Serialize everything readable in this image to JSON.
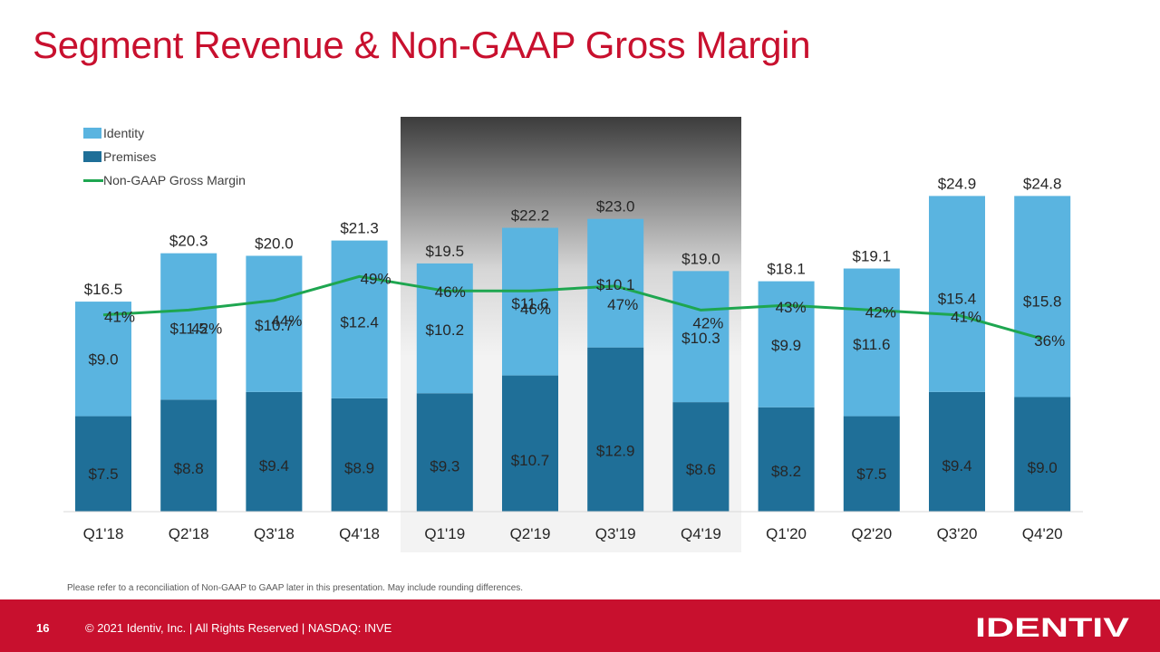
{
  "title": "Segment Revenue & Non-GAAP Gross Margin",
  "footnote": "Please refer to a reconciliation of Non-GAAP to GAAP later in this presentation. May include rounding differences.",
  "footer": {
    "page_number": "16",
    "copyright": "© 2021 Identiv, Inc.  |  All Rights Reserved  |  NASDAQ: INVE",
    "logo_text": "IDENTIV"
  },
  "colors": {
    "identity": "#5ab4e0",
    "premises": "#1f6f98",
    "margin_line": "#1ea650",
    "title": "#c8102e",
    "footer_bg": "#c8102e"
  },
  "chart_data": {
    "type": "bar",
    "stacked": true,
    "title": "",
    "xlabel": "",
    "ylabel": "",
    "categories": [
      "Q1'18",
      "Q2'18",
      "Q3'18",
      "Q4'18",
      "Q1'19",
      "Q2'19",
      "Q3'19",
      "Q4'19",
      "Q1'20",
      "Q2'20",
      "Q3'20",
      "Q4'20"
    ],
    "series": [
      {
        "name": "Premises",
        "values": [
          7.5,
          8.8,
          9.4,
          8.9,
          9.3,
          10.7,
          12.9,
          8.6,
          8.2,
          7.5,
          9.4,
          9.0
        ],
        "labels": [
          "$7.5",
          "$8.8",
          "$9.4",
          "$8.9",
          "$9.3",
          "$10.7",
          "$12.9",
          "$8.6",
          "$8.2",
          "$7.5",
          "$9.4",
          "$9.0"
        ]
      },
      {
        "name": "Identity",
        "values": [
          9.0,
          11.5,
          10.7,
          12.4,
          10.2,
          11.6,
          10.1,
          10.3,
          9.9,
          11.6,
          15.4,
          15.8
        ],
        "labels": [
          "$9.0",
          "$11.5",
          "$10.7",
          "$12.4",
          "$10.2",
          "$11.6",
          "$10.1",
          "$10.3",
          "$9.9",
          "$11.6",
          "$15.4",
          "$15.8"
        ]
      }
    ],
    "totals": [
      16.5,
      20.3,
      20.0,
      21.3,
      19.5,
      22.2,
      23.0,
      19.0,
      18.1,
      19.1,
      24.9,
      24.8
    ],
    "total_labels": [
      "$16.5",
      "$20.3",
      "$20.0",
      "$21.3",
      "$19.5",
      "$22.2",
      "$23.0",
      "$19.0",
      "$18.1",
      "$19.1",
      "$24.9",
      "$24.8"
    ],
    "line_series": {
      "name": "Non-GAAP Gross Margin",
      "values": [
        41,
        42,
        44,
        49,
        46,
        46,
        47,
        42,
        43,
        42,
        41,
        36
      ],
      "labels": [
        "41%",
        "42%",
        "44%",
        "49%",
        "46%",
        "46%",
        "47%",
        "42%",
        "43%",
        "42%",
        "41%",
        "36%"
      ],
      "ylim": [
        0,
        100
      ]
    },
    "ylim": [
      0,
      27.5
    ],
    "legend": [
      "Identity",
      "Premises",
      "Non-GAAP Gross Margin"
    ],
    "legend_position": "top-left",
    "highlight_categories": [
      "Q1'19",
      "Q2'19",
      "Q3'19",
      "Q4'19"
    ],
    "grid": false
  }
}
